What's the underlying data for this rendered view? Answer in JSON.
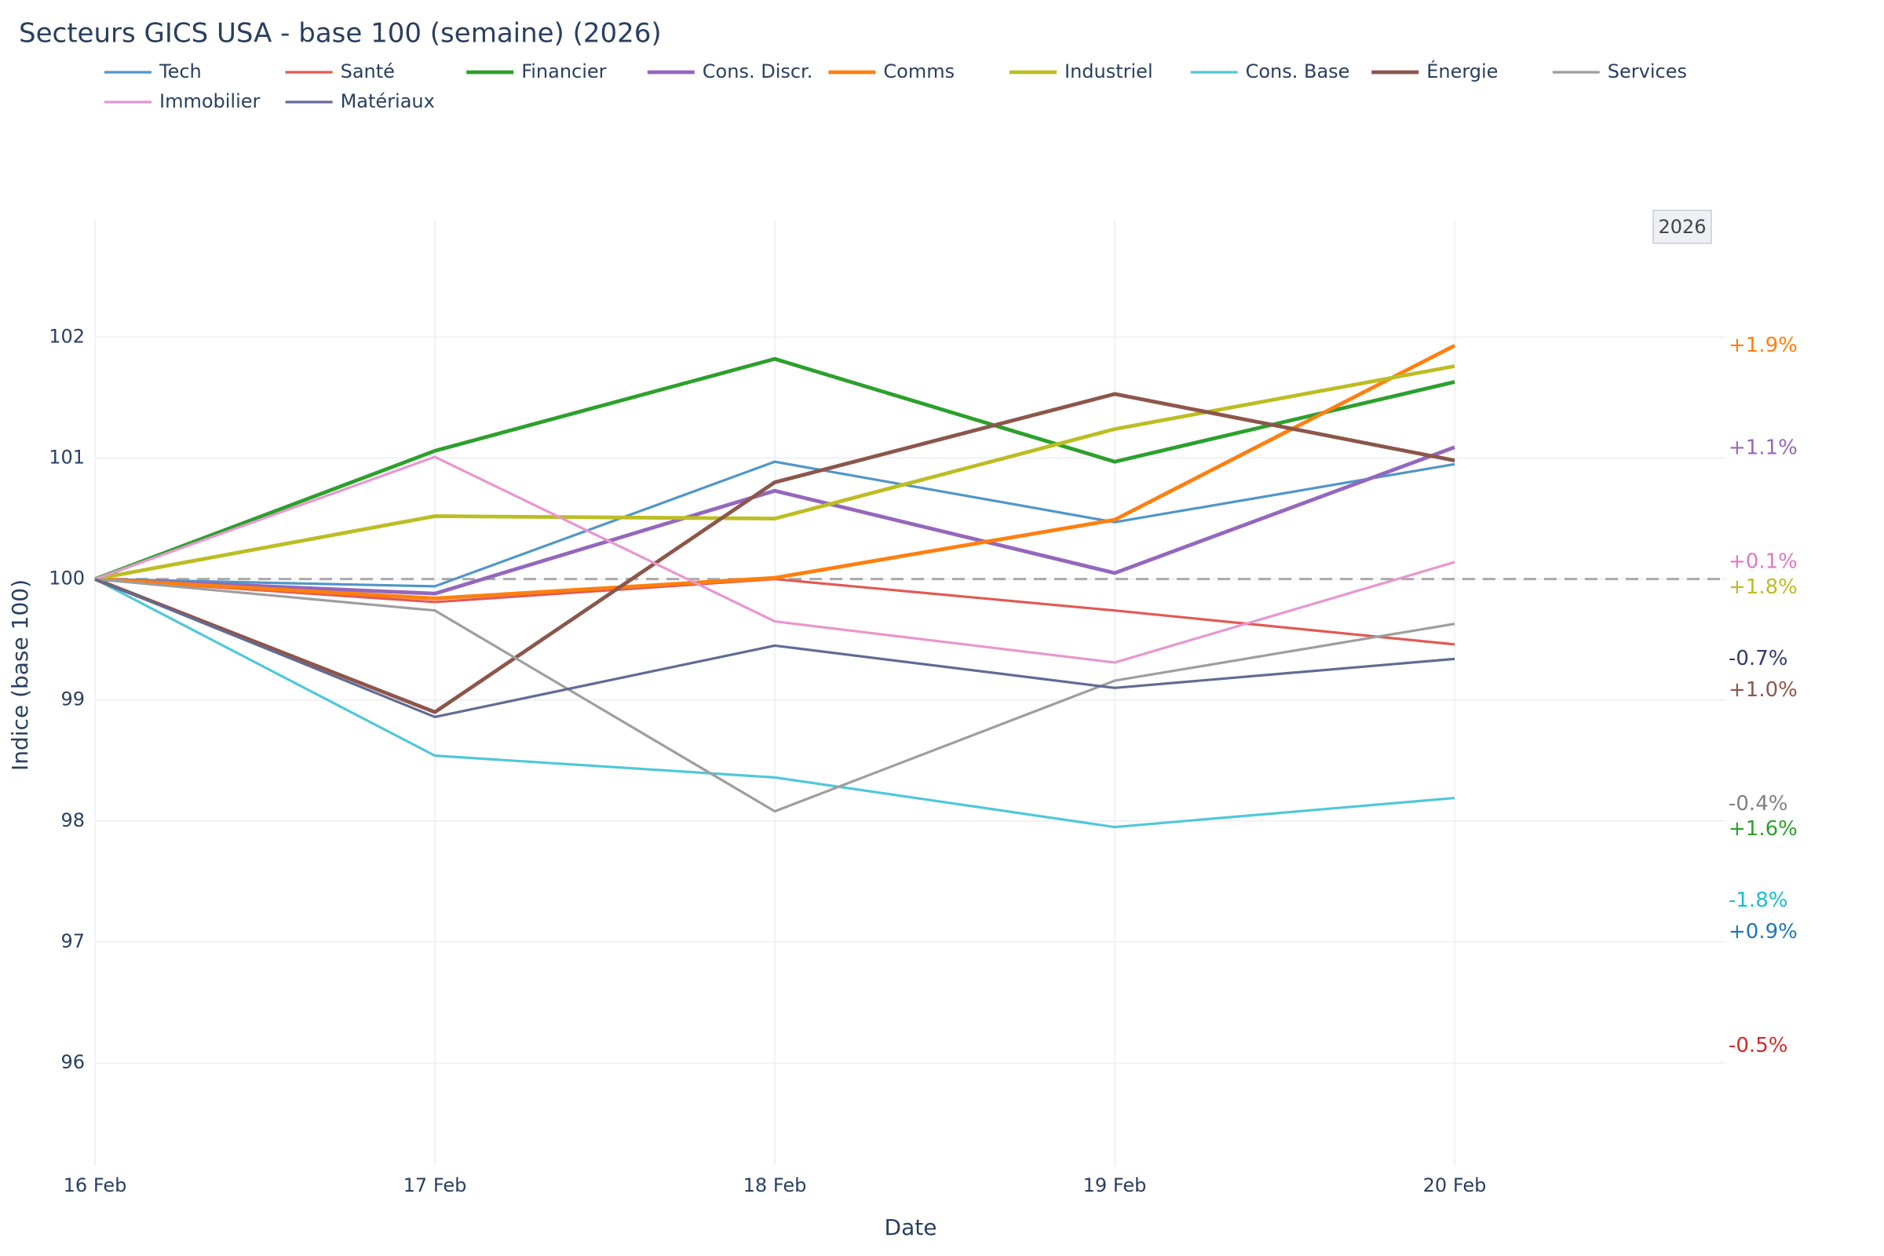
{
  "chart_data": {
    "type": "line",
    "title": "Secteurs GICS USA - base 100 (semaine) (2026)",
    "x_label": "Date",
    "y_label": "Indice (base 100)",
    "categories": [
      "16 Feb",
      "17 Feb",
      "18 Feb",
      "19 Feb",
      "20 Feb"
    ],
    "ylim": [
      95.15,
      102.97
    ],
    "yticks": [
      96,
      97,
      98,
      99,
      100,
      101,
      102
    ],
    "grid": true,
    "reference_line": 100,
    "badge": "2026",
    "series": [
      {
        "name": "Tech",
        "color": "#5096c8",
        "width": 2,
        "values": [
          100,
          99.94,
          100.97,
          100.47,
          100.95
        ]
      },
      {
        "name": "Santé",
        "color": "#e05a55",
        "width": 2,
        "values": [
          100,
          99.81,
          100.0,
          99.74,
          99.46
        ]
      },
      {
        "name": "Financier",
        "color": "#2ca02c",
        "width": 3,
        "values": [
          100,
          101.06,
          101.82,
          100.97,
          101.63
        ]
      },
      {
        "name": "Cons. Discr.",
        "color": "#9467bd",
        "width": 3,
        "values": [
          100,
          99.88,
          100.73,
          100.05,
          101.09
        ]
      },
      {
        "name": "Comms",
        "color": "#ff7f0e",
        "width": 3,
        "values": [
          100,
          99.84,
          100.01,
          100.49,
          101.93
        ]
      },
      {
        "name": "Industriel",
        "color": "#bcbd22",
        "width": 3,
        "values": [
          100,
          100.52,
          100.5,
          101.24,
          101.76
        ]
      },
      {
        "name": "Cons. Base",
        "color": "#4fc8d8",
        "width": 2,
        "values": [
          100,
          98.54,
          98.36,
          97.95,
          98.19
        ]
      },
      {
        "name": "Énergie",
        "color": "#8c564b",
        "width": 3,
        "values": [
          100,
          98.9,
          100.8,
          101.53,
          100.98
        ]
      },
      {
        "name": "Services",
        "color": "#9e9e9e",
        "width": 2,
        "values": [
          100,
          99.74,
          98.08,
          99.16,
          99.63
        ]
      },
      {
        "name": "Immobilier",
        "color": "#e896cf",
        "width": 2,
        "values": [
          100,
          101.01,
          99.65,
          99.31,
          100.14
        ]
      },
      {
        "name": "Matériaux",
        "color": "#636a93",
        "width": 2,
        "values": [
          100,
          98.86,
          99.45,
          99.1,
          99.34
        ]
      }
    ],
    "annotations": [
      {
        "text": "+1.9%",
        "y": 101.93,
        "color": "#ff7f0e"
      },
      {
        "text": "+1.1%",
        "y": 101.08,
        "color": "#9467bd"
      },
      {
        "text": "+0.1%",
        "y": 100.14,
        "color": "#e377c2"
      },
      {
        "text": "+1.8%",
        "y": 99.93,
        "color": "#bcbd22"
      },
      {
        "text": "-0.7%",
        "y": 99.34,
        "color": "#34396b"
      },
      {
        "text": "+1.0%",
        "y": 99.08,
        "color": "#8c564b"
      },
      {
        "text": "-0.4%",
        "y": 98.14,
        "color": "#7f7f7f"
      },
      {
        "text": "+1.6%",
        "y": 97.93,
        "color": "#2ca02c"
      },
      {
        "text": "-1.8%",
        "y": 97.34,
        "color": "#17becf"
      },
      {
        "text": "+0.9%",
        "y": 97.08,
        "color": "#1f77b4"
      },
      {
        "text": "-0.5%",
        "y": 96.14,
        "color": "#d62728"
      }
    ]
  }
}
